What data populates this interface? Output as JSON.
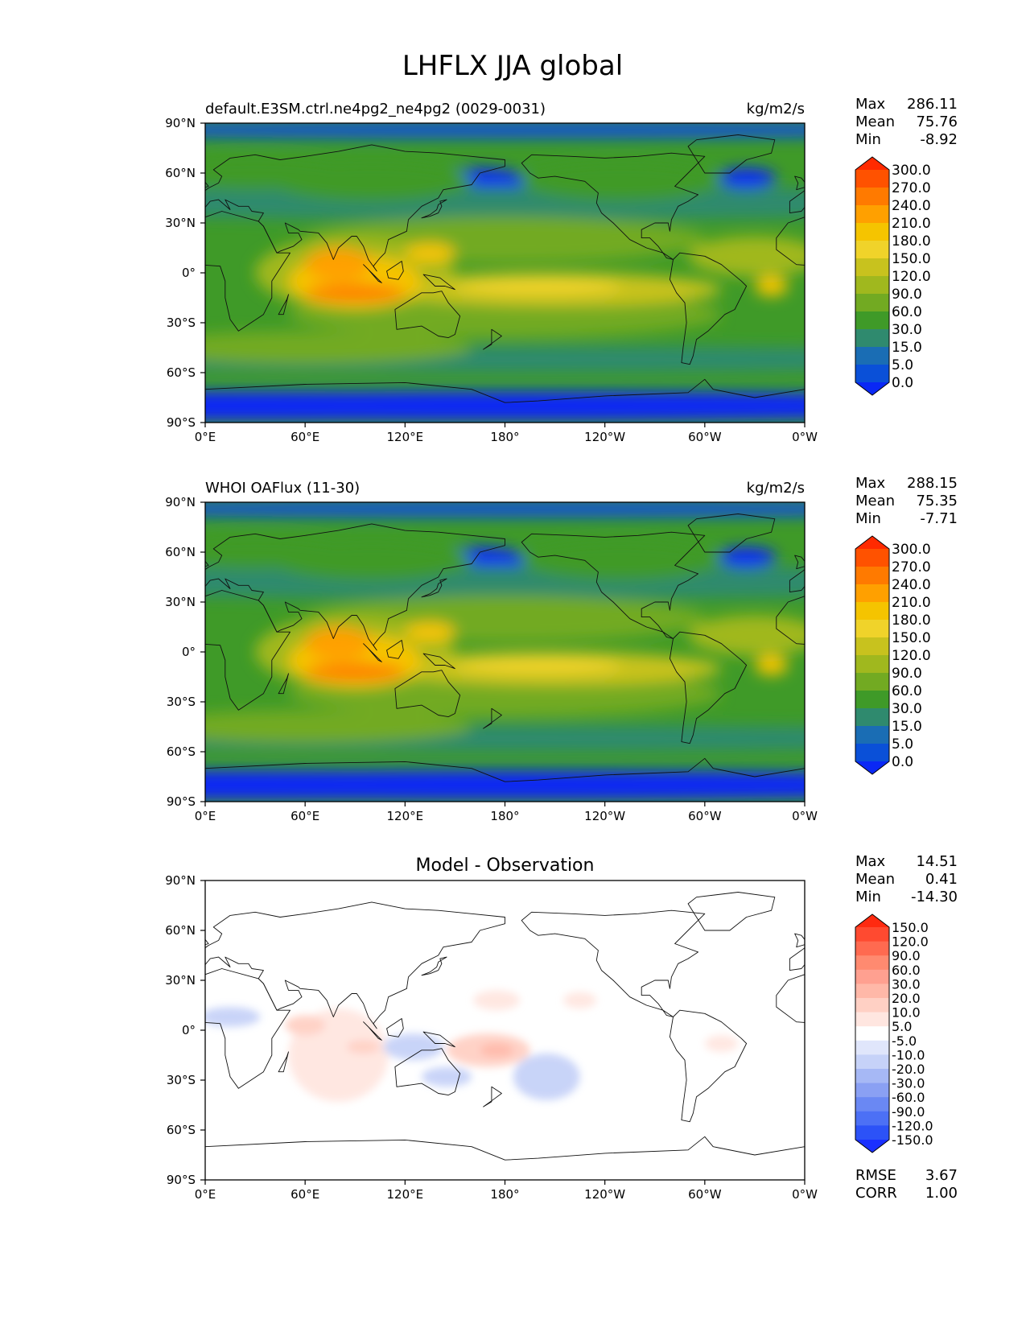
{
  "figure": {
    "title": "LHFLX JJA global"
  },
  "chart_data": [
    {
      "type": "heatmap",
      "title": "default.E3SM.ctrl.ne4pg2_ne4pg2 (0029-0031)",
      "units": "kg/m2/s",
      "x_ticks": [
        "0°E",
        "60°E",
        "120°E",
        "180°",
        "120°W",
        "60°W",
        "0°W"
      ],
      "y_ticks": [
        "90°N",
        "60°N",
        "30°N",
        "0°",
        "30°S",
        "60°S",
        "90°S"
      ],
      "xlim": [
        0,
        360
      ],
      "ylim": [
        -90,
        90
      ],
      "stats": [
        {
          "label": "Max",
          "value": "286.11"
        },
        {
          "label": "Mean",
          "value": "75.76"
        },
        {
          "label": "Min",
          "value": "-8.92"
        }
      ],
      "colorbar": {
        "levels": [
          "300.0",
          "270.0",
          "240.0",
          "210.0",
          "180.0",
          "150.0",
          "120.0",
          "90.0",
          "60.0",
          "30.0",
          "15.0",
          "5.0",
          "0.0"
        ],
        "colors": [
          "#ff2a00",
          "#ff5200",
          "#ff7a00",
          "#ffa000",
          "#f5c400",
          "#f0d32a",
          "#c8c21e",
          "#a0b81e",
          "#72aa22",
          "#3f9a28",
          "#2f8a6e",
          "#1a6db4",
          "#0a50d8",
          "#0a28f5"
        ]
      }
    },
    {
      "type": "heatmap",
      "title": "WHOI OAFlux (11-30)",
      "units": "kg/m2/s",
      "x_ticks": [
        "0°E",
        "60°E",
        "120°E",
        "180°",
        "120°W",
        "60°W",
        "0°W"
      ],
      "y_ticks": [
        "90°N",
        "60°N",
        "30°N",
        "0°",
        "30°S",
        "60°S",
        "90°S"
      ],
      "xlim": [
        0,
        360
      ],
      "ylim": [
        -90,
        90
      ],
      "stats": [
        {
          "label": "Max",
          "value": "288.15"
        },
        {
          "label": "Mean",
          "value": "75.35"
        },
        {
          "label": "Min",
          "value": "-7.71"
        }
      ],
      "colorbar": {
        "levels": [
          "300.0",
          "270.0",
          "240.0",
          "210.0",
          "180.0",
          "150.0",
          "120.0",
          "90.0",
          "60.0",
          "30.0",
          "15.0",
          "5.0",
          "0.0"
        ],
        "colors": [
          "#ff2a00",
          "#ff5200",
          "#ff7a00",
          "#ffa000",
          "#f5c400",
          "#f0d32a",
          "#c8c21e",
          "#a0b81e",
          "#72aa22",
          "#3f9a28",
          "#2f8a6e",
          "#1a6db4",
          "#0a50d8",
          "#0a28f5"
        ]
      }
    },
    {
      "type": "heatmap",
      "title": "Model - Observation",
      "units": "",
      "x_ticks": [
        "0°E",
        "60°E",
        "120°E",
        "180°",
        "120°W",
        "60°W",
        "0°W"
      ],
      "y_ticks": [
        "90°N",
        "60°N",
        "30°N",
        "0°",
        "30°S",
        "60°S",
        "90°S"
      ],
      "xlim": [
        0,
        360
      ],
      "ylim": [
        -90,
        90
      ],
      "stats": [
        {
          "label": "Max",
          "value": "14.51"
        },
        {
          "label": "Mean",
          "value": "0.41"
        },
        {
          "label": "Min",
          "value": "-14.30"
        }
      ],
      "extra_stats": [
        {
          "label": "RMSE",
          "value": "3.67"
        },
        {
          "label": "CORR",
          "value": "1.00"
        }
      ],
      "colorbar": {
        "levels": [
          "150.0",
          "120.0",
          "90.0",
          "60.0",
          "30.0",
          "20.0",
          "10.0",
          "5.0",
          "-5.0",
          "-10.0",
          "-20.0",
          "-30.0",
          "-60.0",
          "-90.0",
          "-120.0",
          "-150.0"
        ],
        "colors": [
          "#ff2a10",
          "#ff4a30",
          "#ff6a50",
          "#ff8a70",
          "#ffa090",
          "#ffb8a8",
          "#ffd0c4",
          "#ffe6e0",
          "#ffffff",
          "#e0e6fb",
          "#c6d2f8",
          "#a6b8f5",
          "#8aa0f3",
          "#6a88f3",
          "#4c70f5",
          "#2c52f7",
          "#1a30ff"
        ]
      }
    }
  ]
}
